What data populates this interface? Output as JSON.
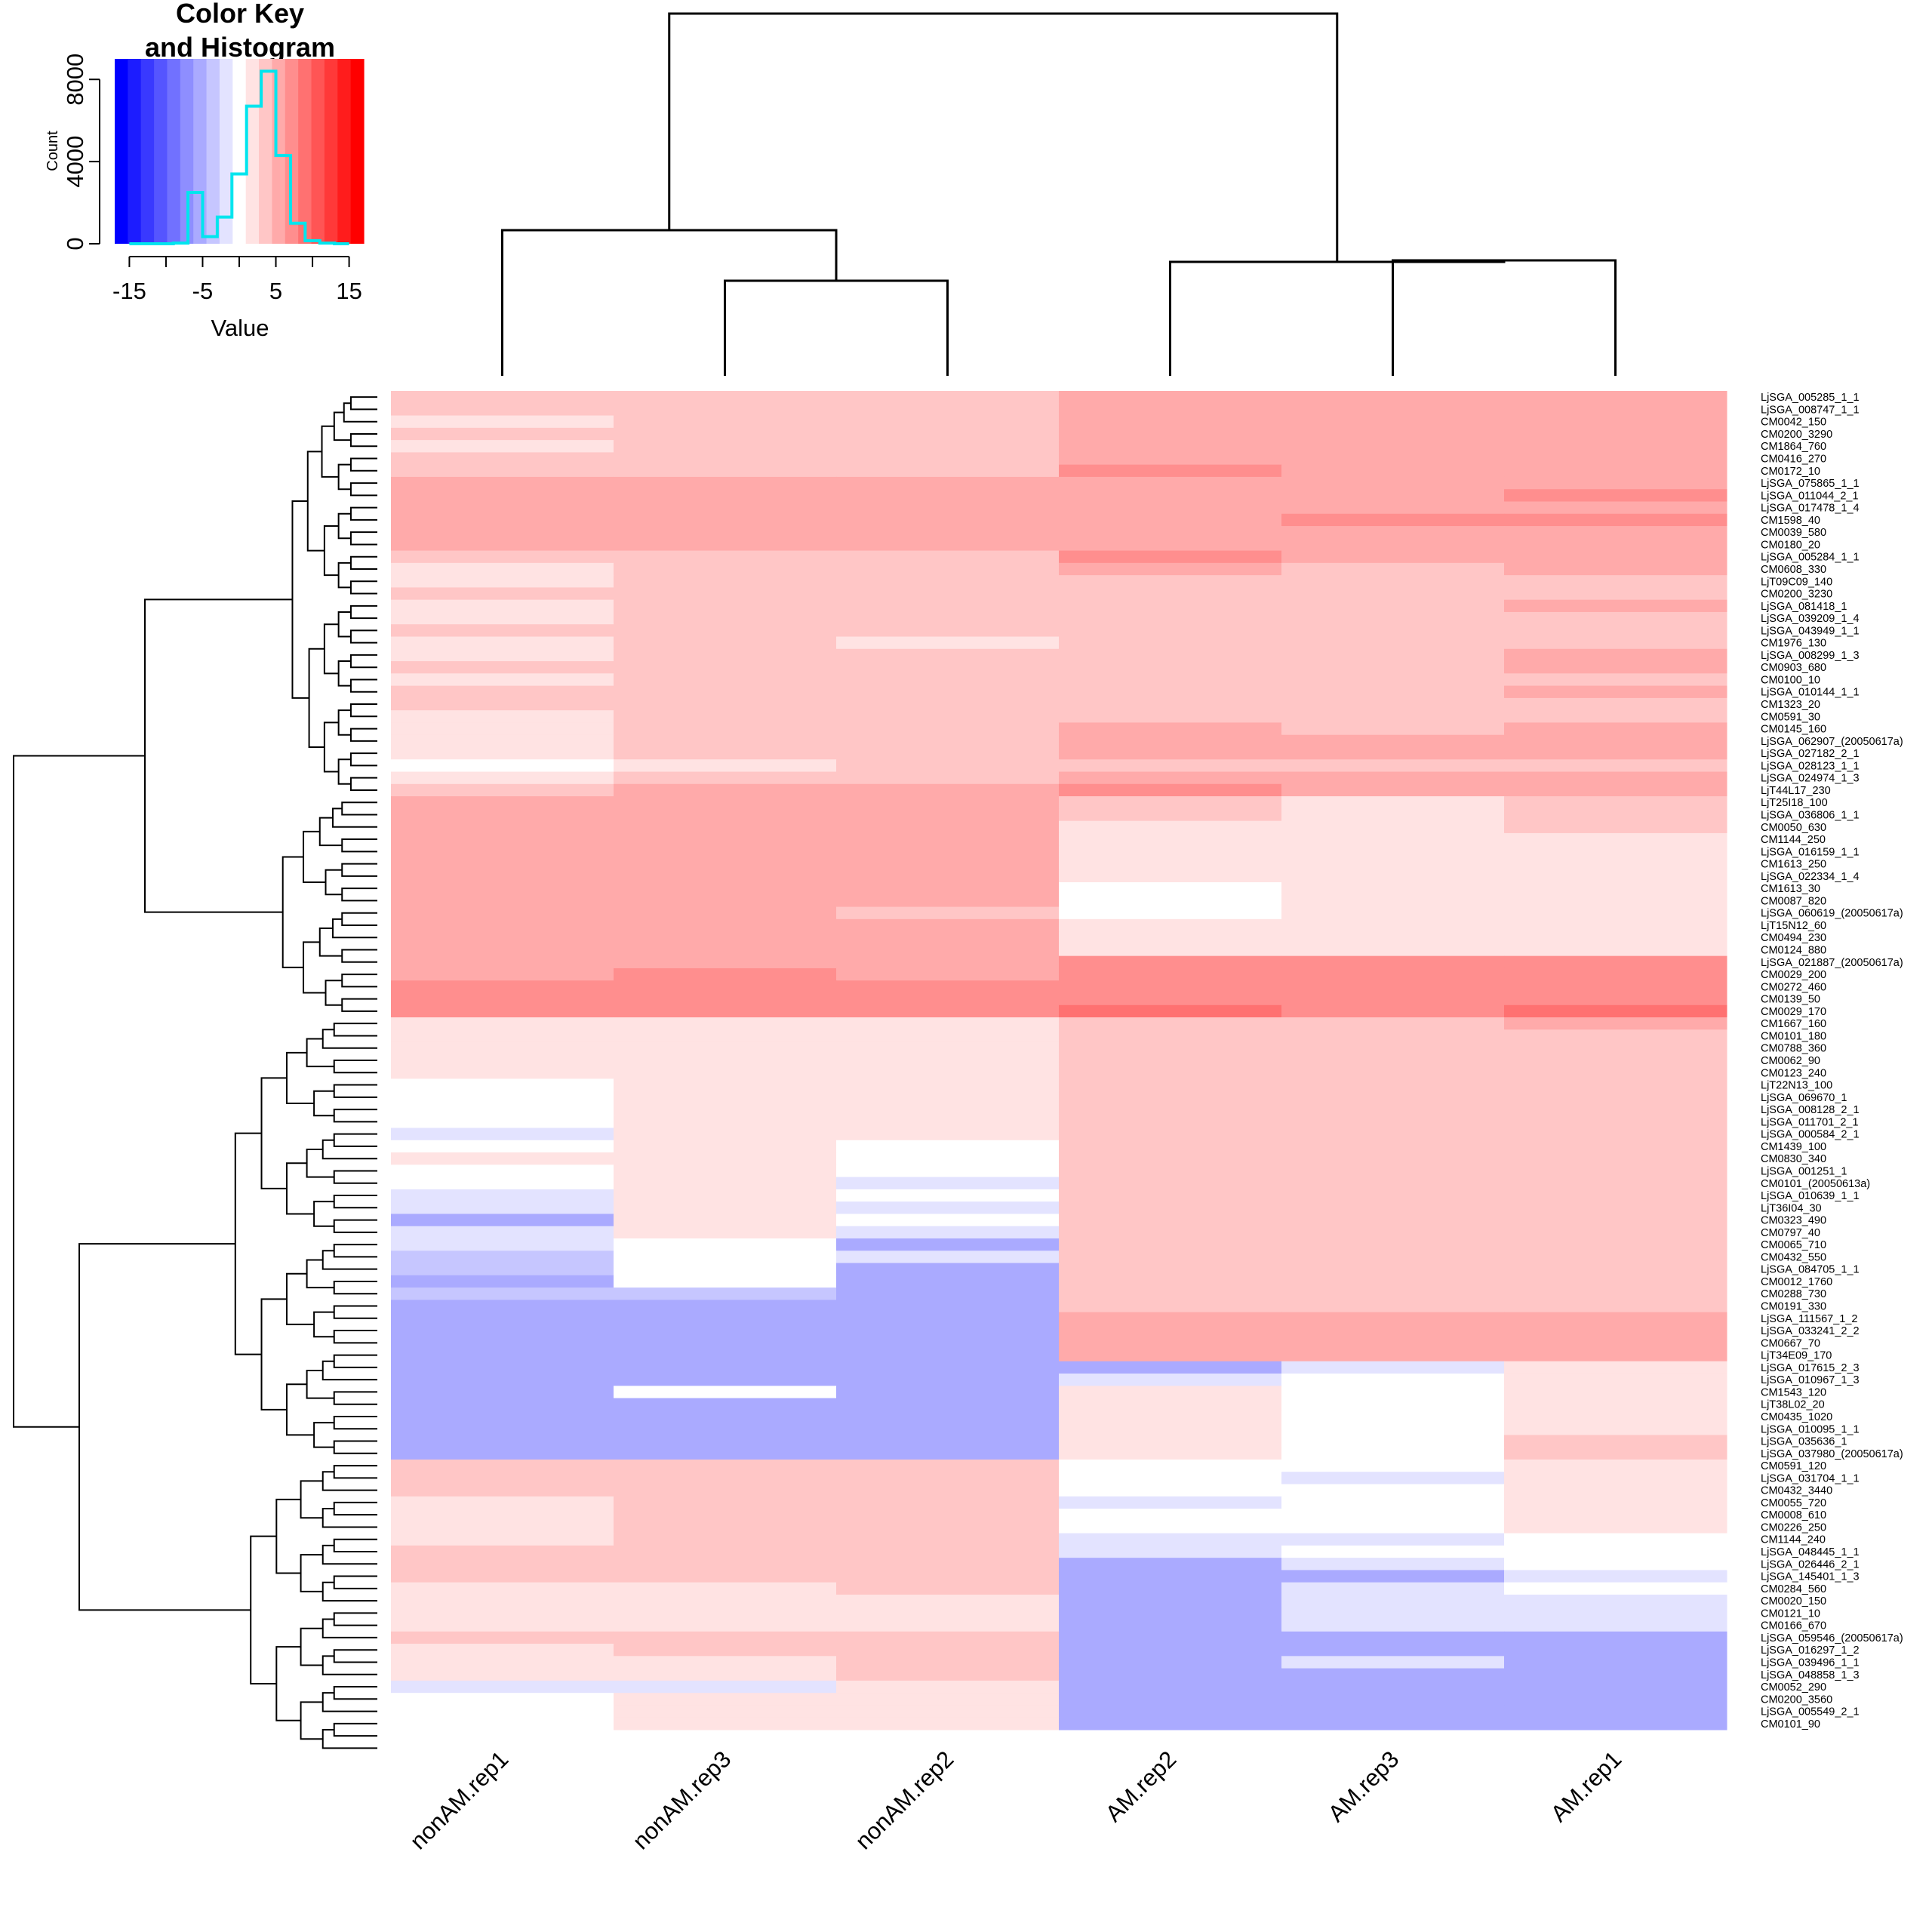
{
  "chart_data": {
    "type": "heatmap",
    "color_key": {
      "title_line1": "Color Key",
      "title_line2": "and Histogram",
      "xlabel": "Value",
      "ylabel": "Count",
      "xticks": [
        -15,
        -5,
        5,
        15
      ],
      "yticks": [
        0,
        4000,
        8000
      ],
      "xlim": [
        -17,
        17
      ],
      "ylim": [
        0,
        9000
      ],
      "colors": [
        "#0000ff",
        "#1c1cff",
        "#3939ff",
        "#5555ff",
        "#7171ff",
        "#8e8eff",
        "#aaaaff",
        "#c6c6ff",
        "#e3e3ff",
        "#ffffff",
        "#ffe3e3",
        "#ffc6c6",
        "#ffaaaa",
        "#ff8e8e",
        "#ff7171",
        "#ff5555",
        "#ff3939",
        "#ff1c1c",
        "#ff0000"
      ],
      "histogram_color": "#00e5ee",
      "histogram": [
        {
          "x0": -15,
          "x1": -13,
          "count": 0
        },
        {
          "x0": -13,
          "x1": -11,
          "count": 0
        },
        {
          "x0": -11,
          "x1": -9,
          "count": 0
        },
        {
          "x0": -9,
          "x1": -7,
          "count": 30
        },
        {
          "x0": -7,
          "x1": -5,
          "count": 2500
        },
        {
          "x0": -5,
          "x1": -3,
          "count": 350
        },
        {
          "x0": -3,
          "x1": -1,
          "count": 1300
        },
        {
          "x0": -1,
          "x1": 1,
          "count": 3400
        },
        {
          "x0": 1,
          "x1": 3,
          "count": 6700
        },
        {
          "x0": 3,
          "x1": 5,
          "count": 8400
        },
        {
          "x0": 5,
          "x1": 7,
          "count": 4300
        },
        {
          "x0": 7,
          "x1": 9,
          "count": 1000
        },
        {
          "x0": 9,
          "x1": 11,
          "count": 150
        },
        {
          "x0": 11,
          "x1": 13,
          "count": 30
        },
        {
          "x0": 13,
          "x1": 15,
          "count": 0
        }
      ]
    },
    "columns": [
      "nonAM.rep1",
      "nonAM.rep3",
      "nonAM.rep2",
      "AM.rep2",
      "AM.rep3",
      "AM.rep1"
    ],
    "row_labels": [
      "LjSGA_005285_1_1",
      "LjSGA_008747_1_1",
      "CM0042_150",
      "CM0200_3290",
      "CM1864_760",
      "CM0416_270",
      "CM0172_10",
      "LjSGA_075865_1_1",
      "LjSGA_011044_2_1",
      "LjSGA_017478_1_4",
      "CM1598_40",
      "CM0039_580",
      "CM0180_20",
      "LjSGA_005284_1_1",
      "CM0608_330",
      "LjT09C09_140",
      "CM0200_3230",
      "LjSGA_081418_1",
      "LjSGA_039209_1_4",
      "LjSGA_043949_1_1",
      "CM1976_130",
      "LjSGA_008299_1_3",
      "CM0903_680",
      "CM0100_10",
      "LjSGA_010144_1_1",
      "CM1323_20",
      "CM0591_30",
      "CM0145_160",
      "LjSGA_062907_(20050617a)",
      "LjSGA_027182_2_1",
      "LjSGA_028123_1_1",
      "LjSGA_024974_1_3",
      "LjT44L17_230",
      "LjT25I18_100",
      "LjSGA_036806_1_1",
      "CM0050_630",
      "CM1144_250",
      "LjSGA_016159_1_1",
      "CM1613_250",
      "LjSGA_022334_1_4",
      "CM1613_30",
      "CM0087_820",
      "LjSGA_060619_(20050617a)",
      "LjT15N12_60",
      "CM0494_230",
      "CM0124_880",
      "LjSGA_021887_(20050617a)",
      "CM0029_200",
      "CM0272_460",
      "CM0139_50",
      "CM0029_170",
      "CM1667_160",
      "CM0101_180",
      "CM0788_360",
      "CM0062_90",
      "CM0123_240",
      "LjT22N13_100",
      "LjSGA_069670_1",
      "LjSGA_008128_2_1",
      "LjSGA_011701_2_1",
      "LjSGA_000584_2_1",
      "CM1439_100",
      "CM0830_340",
      "LjSGA_001251_1",
      "CM0101_(20050613a)",
      "LjSGA_010639_1_1",
      "LjT36I04_30",
      "CM0323_490",
      "CM0797_40",
      "CM0065_710",
      "CM0432_550",
      "LjSGA_084705_1_1",
      "CM0012_1760",
      "CM0288_730",
      "CM0191_330",
      "LjSGA_111567_1_2",
      "LjSGA_033241_2_2",
      "CM0667_70",
      "LjT34E09_170",
      "LjSGA_017615_2_3",
      "LjSGA_010967_1_3",
      "CM1543_120",
      "LjT38L02_20",
      "CM0435_1020",
      "LjSGA_010095_1_1",
      "LjSGA_035636_1",
      "LjSGA_037980_(20050617a)",
      "CM0591_120",
      "LjSGA_031704_1_1",
      "CM0432_3440",
      "CM0055_720",
      "CM0008_610",
      "CM0226_250",
      "CM1144_240",
      "LjSGA_048445_1_1",
      "LjSGA_026446_2_1",
      "LjSGA_145401_1_3",
      "CM0284_560",
      "CM0020_150",
      "CM0121_10",
      "CM0166_670",
      "LjSGA_059546_(20050617a)",
      "LjSGA_016297_1_2",
      "LjSGA_039496_1_1",
      "LjSGA_048858_1_3",
      "CM0052_290",
      "CM0200_3560",
      "LjSGA_005549_2_1",
      "CM0101_90"
    ],
    "values": [
      [
        3,
        4,
        3,
        5,
        5,
        6
      ],
      [
        3,
        4,
        3,
        6,
        5,
        6
      ],
      [
        2,
        3,
        3,
        6,
        5,
        5
      ],
      [
        3,
        4,
        4,
        6,
        5,
        6
      ],
      [
        2,
        3,
        3,
        5,
        6,
        5
      ],
      [
        3,
        4,
        3,
        6,
        5,
        6
      ],
      [
        4,
        4,
        4,
        7,
        6,
        6
      ],
      [
        5,
        5,
        5,
        6,
        6,
        6
      ],
      [
        5,
        5,
        6,
        6,
        6,
        7
      ],
      [
        5,
        6,
        5,
        6,
        6,
        6
      ],
      [
        6,
        5,
        5,
        6,
        7,
        7
      ],
      [
        5,
        6,
        5,
        6,
        6,
        6
      ],
      [
        5,
        5,
        5,
        6,
        6,
        6
      ],
      [
        3,
        4,
        4,
        7,
        6,
        6
      ],
      [
        2,
        3,
        3,
        5,
        4,
        5
      ],
      [
        2,
        3,
        3,
        4,
        4,
        4
      ],
      [
        3,
        3,
        3,
        4,
        4,
        4
      ],
      [
        2,
        3,
        3,
        4,
        4,
        5
      ],
      [
        2,
        3,
        3,
        4,
        4,
        4
      ],
      [
        3,
        3,
        3,
        4,
        4,
        4
      ],
      [
        2,
        3,
        2,
        4,
        4,
        4
      ],
      [
        2,
        3,
        3,
        4,
        4,
        5
      ],
      [
        3,
        3,
        3,
        4,
        4,
        5
      ],
      [
        2,
        3,
        3,
        4,
        4,
        4
      ],
      [
        3,
        3,
        3,
        4,
        4,
        5
      ],
      [
        3,
        3,
        3,
        4,
        4,
        4
      ],
      [
        2,
        3,
        3,
        4,
        4,
        4
      ],
      [
        1,
        3,
        3,
        5,
        4,
        5
      ],
      [
        2,
        3,
        3,
        5,
        5,
        5
      ],
      [
        1,
        3,
        3,
        5,
        5,
        5
      ],
      [
        0,
        2,
        3,
        4,
        4,
        4
      ],
      [
        1,
        3,
        3,
        5,
        5,
        5
      ],
      [
        4,
        5,
        5,
        7,
        5,
        5
      ],
      [
        5,
        6,
        6,
        3,
        2,
        3
      ],
      [
        5,
        5,
        5,
        3,
        2,
        3
      ],
      [
        5,
        6,
        5,
        2,
        2,
        3
      ],
      [
        5,
        5,
        5,
        2,
        2,
        2
      ],
      [
        6,
        6,
        5,
        2,
        2,
        2
      ],
      [
        5,
        5,
        5,
        2,
        1,
        2
      ],
      [
        6,
        5,
        6,
        1,
        1,
        2
      ],
      [
        5,
        5,
        5,
        0,
        1,
        2
      ],
      [
        5,
        5,
        5,
        0,
        1,
        1
      ],
      [
        5,
        5,
        4,
        0,
        1,
        1
      ],
      [
        5,
        5,
        5,
        1,
        1,
        1
      ],
      [
        5,
        5,
        5,
        1,
        1,
        2
      ],
      [
        5,
        5,
        5,
        1,
        2,
        2
      ],
      [
        6,
        6,
        6,
        7,
        7,
        7
      ],
      [
        6,
        7,
        6,
        7,
        7,
        7
      ],
      [
        7,
        7,
        7,
        8,
        7,
        7
      ],
      [
        7,
        7,
        7,
        8,
        8,
        8
      ],
      [
        7,
        7,
        7,
        9,
        8,
        9
      ],
      [
        1,
        2,
        2,
        4,
        4,
        5
      ],
      [
        1,
        2,
        2,
        4,
        4,
        4
      ],
      [
        1,
        2,
        2,
        4,
        4,
        4
      ],
      [
        1,
        2,
        2,
        4,
        3,
        4
      ],
      [
        1,
        2,
        2,
        4,
        3,
        4
      ],
      [
        0,
        2,
        2,
        4,
        4,
        4
      ],
      [
        0,
        2,
        2,
        3,
        3,
        4
      ],
      [
        0,
        2,
        1,
        4,
        4,
        4
      ],
      [
        0,
        2,
        1,
        4,
        4,
        4
      ],
      [
        -1,
        2,
        1,
        3,
        3,
        3
      ],
      [
        0,
        2,
        0,
        3,
        3,
        3
      ],
      [
        1,
        2,
        0,
        4,
        4,
        4
      ],
      [
        0,
        2,
        0,
        3,
        3,
        4
      ],
      [
        0,
        2,
        -1,
        3,
        3,
        3
      ],
      [
        -2,
        1,
        0,
        3,
        3,
        3
      ],
      [
        -2,
        1,
        -1,
        3,
        3,
        3
      ],
      [
        -5,
        2,
        0,
        3,
        3,
        3
      ],
      [
        -2,
        1,
        -2,
        3,
        4,
        3
      ],
      [
        -2,
        0,
        -5,
        3,
        3,
        3
      ],
      [
        -3,
        0,
        -2,
        3,
        3,
        3
      ],
      [
        -3,
        0,
        -5,
        4,
        4,
        4
      ],
      [
        -5,
        0,
        -5,
        4,
        4,
        4
      ],
      [
        -4,
        -4,
        -5,
        4,
        4,
        4
      ],
      [
        -5,
        -5,
        -5,
        4,
        4,
        4
      ],
      [
        -5,
        -5,
        -5,
        5,
        5,
        5
      ],
      [
        -5,
        -5,
        -5,
        5,
        6,
        5
      ],
      [
        -5,
        -5,
        -5,
        5,
        5,
        5
      ],
      [
        -5,
        -5,
        -5,
        5,
        5,
        5
      ],
      [
        -5,
        -5,
        -5,
        -5,
        -2,
        2
      ],
      [
        -5,
        -5,
        -5,
        -1,
        0,
        2
      ],
      [
        -5,
        0,
        -5,
        1,
        0,
        2
      ],
      [
        -5,
        -5,
        -5,
        1,
        0,
        2
      ],
      [
        -5,
        -5,
        -5,
        1,
        0,
        2
      ],
      [
        -5,
        -5,
        -5,
        1,
        0,
        2
      ],
      [
        -5,
        -5,
        -5,
        1,
        0,
        3
      ],
      [
        -5,
        -5,
        -5,
        2,
        0,
        3
      ],
      [
        3,
        3,
        3,
        0,
        0,
        2
      ],
      [
        3,
        3,
        3,
        0,
        -1,
        1
      ],
      [
        3,
        3,
        3,
        0,
        0,
        1
      ],
      [
        2,
        3,
        3,
        -1,
        0,
        1
      ],
      [
        2,
        3,
        3,
        0,
        0,
        1
      ],
      [
        2,
        3,
        3,
        0,
        0,
        1
      ],
      [
        2,
        3,
        3,
        -1,
        -1,
        0
      ],
      [
        3,
        3,
        3,
        -1,
        0,
        0
      ],
      [
        3,
        3,
        3,
        -5,
        -2,
        0
      ],
      [
        3,
        3,
        3,
        -5,
        -5,
        -1
      ],
      [
        2,
        2,
        3,
        -5,
        -2,
        0
      ],
      [
        2,
        2,
        2,
        -5,
        -2,
        -1
      ],
      [
        2,
        2,
        2,
        -5,
        -2,
        -1
      ],
      [
        2,
        2,
        2,
        -5,
        -2,
        -1
      ],
      [
        4,
        3,
        3,
        -5,
        -5,
        -5
      ],
      [
        2,
        3,
        3,
        -5,
        -5,
        -5
      ],
      [
        2,
        2,
        3,
        -5,
        -2,
        -5
      ],
      [
        1,
        2,
        3,
        -5,
        -5,
        -5
      ],
      [
        -1,
        -2,
        2,
        -5,
        -5,
        -5
      ],
      [
        0,
        1,
        2,
        -5,
        -5,
        -5
      ],
      [
        0,
        1,
        2,
        -5,
        -5,
        -5
      ],
      [
        0,
        1,
        2,
        -5,
        -5,
        -5
      ]
    ],
    "column_order_note": "",
    "xlabel": "",
    "ylabel": ""
  }
}
